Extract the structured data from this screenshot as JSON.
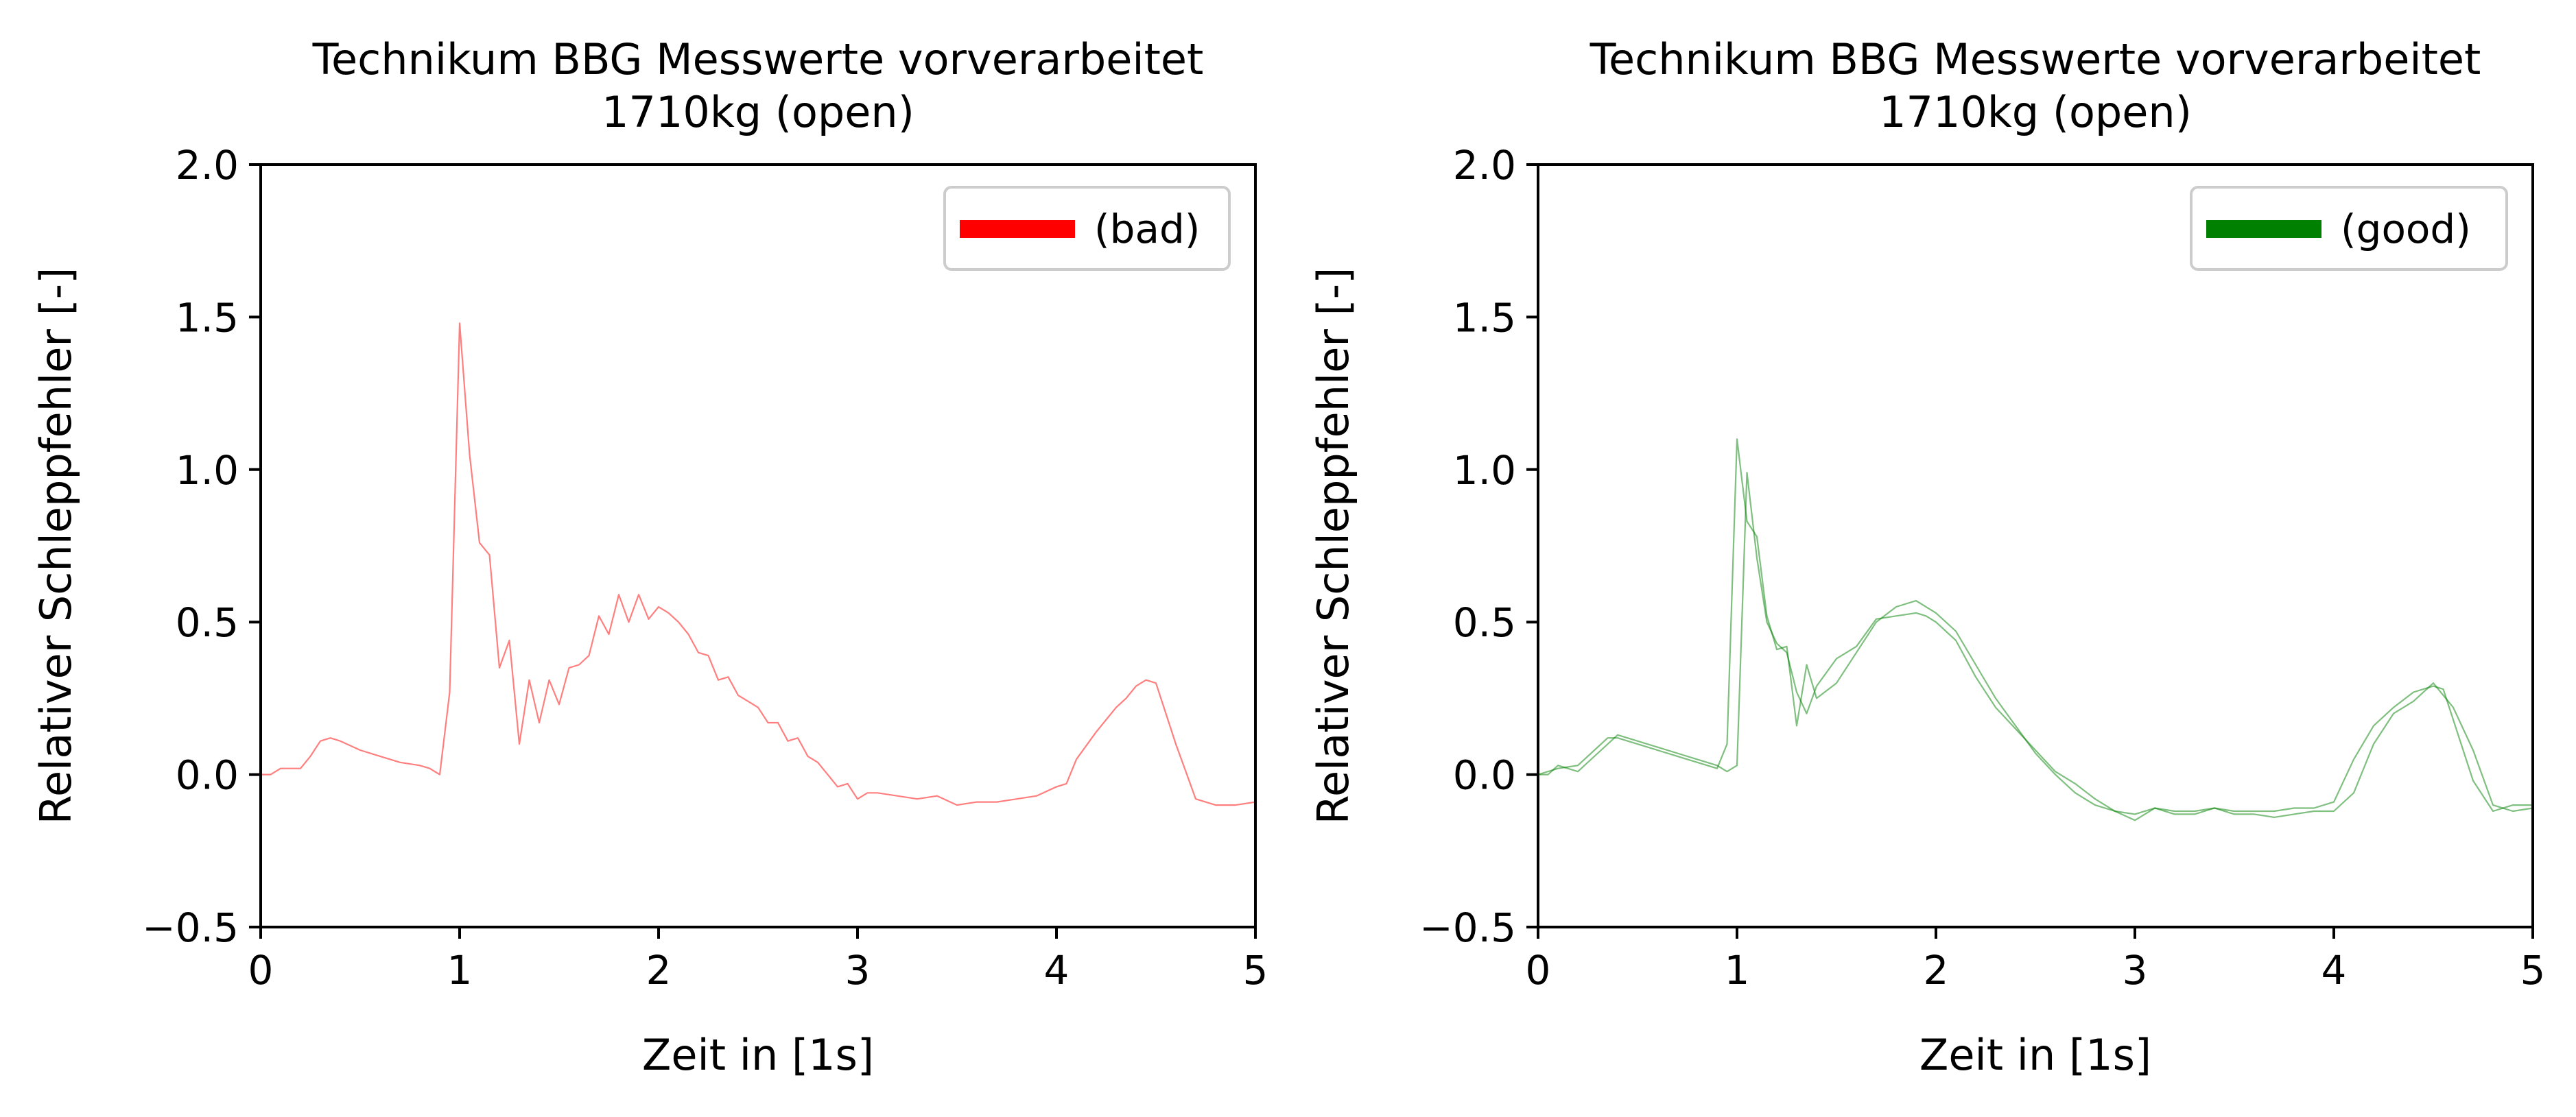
{
  "chart_data": [
    {
      "type": "line",
      "title": "Technikum BBG Messwerte vorverarbeitet",
      "subtitle": "1710kg (open)",
      "xlabel": "Zeit in [1s]",
      "ylabel": "Relativer Schleppfehler [-]",
      "xlim": [
        0,
        5
      ],
      "ylim": [
        -0.5,
        2.0
      ],
      "xticks": [
        "0",
        "1",
        "2",
        "3",
        "4",
        "5"
      ],
      "yticks": [
        "−0.5",
        "0.0",
        "0.5",
        "1.0",
        "1.5",
        "2.0"
      ],
      "grid": false,
      "legend": {
        "placement": "top-right",
        "entries": [
          {
            "label": "(bad)",
            "color": "#ff0000"
          }
        ]
      },
      "series": [
        {
          "color": "#ff0000",
          "x": [
            0.0,
            0.05,
            0.1,
            0.2,
            0.25,
            0.3,
            0.35,
            0.4,
            0.5,
            0.6,
            0.7,
            0.8,
            0.85,
            0.9,
            0.95,
            1.0,
            1.05,
            1.1,
            1.15,
            1.2,
            1.25,
            1.3,
            1.35,
            1.4,
            1.45,
            1.5,
            1.55,
            1.6,
            1.65,
            1.7,
            1.75,
            1.8,
            1.85,
            1.9,
            1.95,
            2.0,
            2.05,
            2.1,
            2.15,
            2.2,
            2.25,
            2.3,
            2.35,
            2.4,
            2.45,
            2.5,
            2.55,
            2.6,
            2.65,
            2.7,
            2.75,
            2.8,
            2.85,
            2.9,
            2.95,
            3.0,
            3.05,
            3.1,
            3.2,
            3.3,
            3.4,
            3.5,
            3.6,
            3.7,
            3.8,
            3.9,
            4.0,
            4.05,
            4.1,
            4.2,
            4.3,
            4.35,
            4.4,
            4.45,
            4.5,
            4.55,
            4.6,
            4.7,
            4.8,
            4.9,
            5.0
          ],
          "y": [
            0.0,
            0.0,
            0.02,
            0.02,
            0.06,
            0.11,
            0.12,
            0.11,
            0.08,
            0.06,
            0.04,
            0.03,
            0.02,
            0.0,
            0.27,
            1.48,
            1.05,
            0.76,
            0.72,
            0.35,
            0.44,
            0.1,
            0.31,
            0.17,
            0.31,
            0.23,
            0.35,
            0.36,
            0.39,
            0.52,
            0.46,
            0.59,
            0.5,
            0.59,
            0.51,
            0.55,
            0.53,
            0.5,
            0.46,
            0.4,
            0.39,
            0.31,
            0.32,
            0.26,
            0.24,
            0.22,
            0.17,
            0.17,
            0.11,
            0.12,
            0.06,
            0.04,
            0.0,
            -0.04,
            -0.03,
            -0.08,
            -0.06,
            -0.06,
            -0.07,
            -0.08,
            -0.07,
            -0.1,
            -0.09,
            -0.09,
            -0.08,
            -0.07,
            -0.04,
            -0.03,
            0.05,
            0.14,
            0.22,
            0.25,
            0.29,
            0.31,
            0.3,
            0.2,
            0.1,
            -0.08,
            -0.1,
            -0.1,
            -0.09
          ]
        }
      ]
    },
    {
      "type": "line",
      "title": "Technikum BBG Messwerte vorverarbeitet",
      "subtitle": "1710kg (open)",
      "xlabel": "Zeit in [1s]",
      "ylabel": "Relativer Schleppfehler [-]",
      "xlim": [
        0,
        5
      ],
      "ylim": [
        -0.5,
        2.0
      ],
      "xticks": [
        "0",
        "1",
        "2",
        "3",
        "4",
        "5"
      ],
      "yticks": [
        "−0.5",
        "0.0",
        "0.5",
        "1.0",
        "1.5",
        "2.0"
      ],
      "grid": false,
      "legend": {
        "placement": "top-right",
        "entries": [
          {
            "label": "(good)",
            "color": "#008000"
          }
        ]
      },
      "series": [
        {
          "color": "#008000",
          "x": [
            0.0,
            0.1,
            0.2,
            0.3,
            0.35,
            0.4,
            0.5,
            0.6,
            0.7,
            0.8,
            0.9,
            0.95,
            1.0,
            1.05,
            1.1,
            1.15,
            1.2,
            1.25,
            1.3,
            1.35,
            1.4,
            1.5,
            1.6,
            1.7,
            1.8,
            1.9,
            2.0,
            2.1,
            2.2,
            2.3,
            2.4,
            2.5,
            2.6,
            2.7,
            2.8,
            2.9,
            3.0,
            3.1,
            3.2,
            3.3,
            3.4,
            3.5,
            3.6,
            3.7,
            3.8,
            3.9,
            4.0,
            4.1,
            4.2,
            4.3,
            4.4,
            4.5,
            4.55,
            4.6,
            4.7,
            4.8,
            4.9,
            5.0
          ],
          "y": [
            0.0,
            0.02,
            0.03,
            0.09,
            0.12,
            0.12,
            0.1,
            0.08,
            0.06,
            0.04,
            0.02,
            0.1,
            1.1,
            0.83,
            0.78,
            0.52,
            0.41,
            0.42,
            0.16,
            0.36,
            0.25,
            0.3,
            0.4,
            0.5,
            0.55,
            0.57,
            0.53,
            0.47,
            0.36,
            0.25,
            0.16,
            0.07,
            0.0,
            -0.06,
            -0.1,
            -0.12,
            -0.13,
            -0.11,
            -0.12,
            -0.12,
            -0.11,
            -0.12,
            -0.12,
            -0.12,
            -0.11,
            -0.11,
            -0.09,
            0.05,
            0.16,
            0.22,
            0.27,
            0.29,
            0.28,
            0.18,
            -0.02,
            -0.12,
            -0.1,
            -0.1
          ]
        },
        {
          "color": "#008000",
          "x": [
            0.0,
            0.05,
            0.1,
            0.2,
            0.3,
            0.4,
            0.5,
            0.6,
            0.7,
            0.8,
            0.9,
            0.95,
            1.0,
            1.05,
            1.1,
            1.15,
            1.2,
            1.25,
            1.3,
            1.35,
            1.4,
            1.5,
            1.6,
            1.7,
            1.8,
            1.9,
            1.95,
            2.0,
            2.1,
            2.2,
            2.3,
            2.4,
            2.5,
            2.6,
            2.7,
            2.8,
            2.9,
            3.0,
            3.1,
            3.2,
            3.3,
            3.4,
            3.5,
            3.6,
            3.7,
            3.8,
            3.9,
            4.0,
            4.1,
            4.2,
            4.3,
            4.4,
            4.5,
            4.6,
            4.7,
            4.8,
            4.9,
            5.0
          ],
          "y": [
            0.0,
            0.0,
            0.03,
            0.01,
            0.07,
            0.13,
            0.11,
            0.09,
            0.07,
            0.05,
            0.03,
            0.01,
            0.03,
            0.99,
            0.71,
            0.5,
            0.43,
            0.4,
            0.27,
            0.2,
            0.29,
            0.38,
            0.42,
            0.51,
            0.52,
            0.53,
            0.52,
            0.5,
            0.44,
            0.32,
            0.22,
            0.15,
            0.08,
            0.01,
            -0.03,
            -0.08,
            -0.12,
            -0.15,
            -0.11,
            -0.13,
            -0.13,
            -0.11,
            -0.13,
            -0.13,
            -0.14,
            -0.13,
            -0.12,
            -0.12,
            -0.06,
            0.1,
            0.2,
            0.24,
            0.3,
            0.22,
            0.08,
            -0.1,
            -0.12,
            -0.11
          ]
        }
      ]
    }
  ]
}
